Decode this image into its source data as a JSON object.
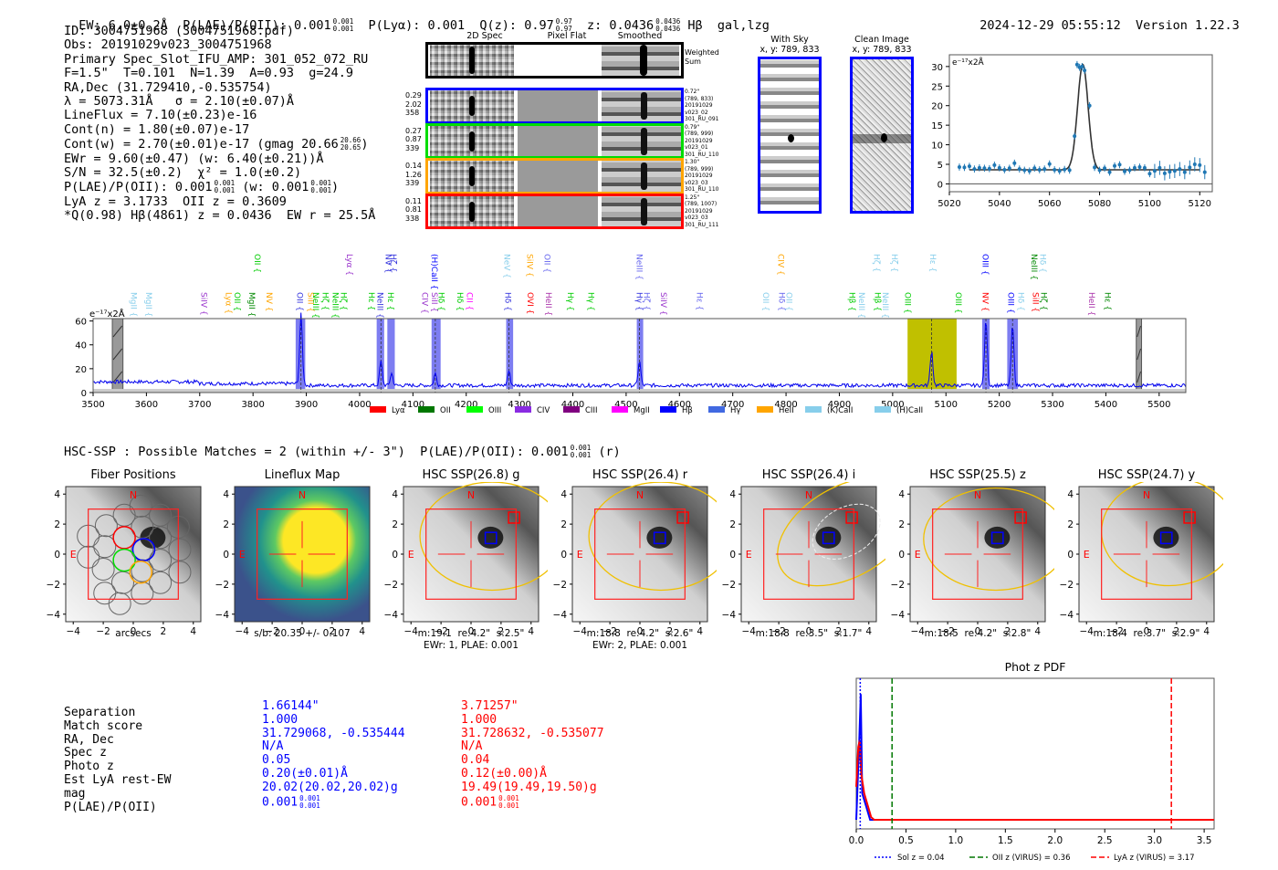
{
  "header": {
    "ew": "EW: 6.0±0.2Å",
    "plae_label": "P(LAE)/P(OII): 0.001",
    "plae_hi": "0.001",
    "plae_lo": "0.001",
    "plya": "P(Lyα): 0.001",
    "qz_label": "Q(z): 0.97",
    "qz_hi": "0.97",
    "qz_lo": "0.97",
    "z_label": "z: 0.0436",
    "z_hi": "0.0436",
    "z_lo": "0.0436",
    "line_tag": "Hβ  gal,lzg",
    "timestamp": "2024-12-29 05:55:12",
    "version": "Version 1.22.3"
  },
  "info": {
    "lines": [
      "ID: 3004751968 (3004751968.pdf)",
      "Obs: 20191029v023_3004751968",
      "Primary Spec_Slot_IFU_AMP: 301_052_072_RU",
      "F=1.5\"  T=0.101  N=1.39  A=0.93  g=24.9",
      "RA,Dec (31.729410,-0.535754)",
      "λ = 5073.31Å   σ = 2.10(±0.07)Å",
      "LineFlux = 7.10(±0.23)e-16",
      "Cont(n) = 1.80(±0.07)e-17"
    ],
    "contw": "Cont(w) = 2.70(±0.01)e-17 (gmag 20.66",
    "contw_hi": "20.66",
    "contw_lo": "20.65",
    "contw_end": ")",
    "ewr": "EWr = 9.60(±0.47) (w: 6.40(±0.21))Å",
    "sn": "S/N = 32.5(±0.2)  χ² = 1.0(±0.2)",
    "plae_a": "P(LAE)/P(OII): 0.001",
    "plae_a_hi": "0.001",
    "plae_a_lo": "0.001",
    "plae_b": " (w: 0.001",
    "plae_b_hi": "0.001",
    "plae_b_lo": "0.001",
    "plae_c": ")",
    "lya_oii": "LyA z = 3.1733  OII z = 0.3609",
    "best": "*Q(0.98) Hβ(4861) z = 0.0436  EW r = 25.5Å"
  },
  "spec2d": {
    "columns": [
      "2D Spec",
      "Pixel Flat",
      "Smoothed"
    ],
    "weighted_label": "Weighted Sum",
    "rows": [
      {
        "color": "#0000ff",
        "left": [
          "0.29",
          "2.02",
          "358"
        ],
        "right": [
          "0.72\"",
          "(789, 833)",
          "20191029",
          "v023_02",
          "301_RU_091"
        ]
      },
      {
        "color": "#00dd00",
        "left": [
          "0.27",
          "0.87",
          "339"
        ],
        "right": [
          "0.79\"",
          "(789, 999)",
          "20191029",
          "v023_01",
          "301_RU_110"
        ]
      },
      {
        "color": "#ffa500",
        "left": [
          "0.14",
          "1.26",
          "339"
        ],
        "right": [
          "1.30\"",
          "(789, 999)",
          "20191029",
          "v023_03",
          "301_RU_110"
        ]
      },
      {
        "color": "#ff0000",
        "left": [
          "0.11",
          "0.81",
          "338"
        ],
        "right": [
          "1.25\"",
          "(789, 1007)",
          "20191029",
          "v023_03",
          "301_RU_111"
        ]
      }
    ]
  },
  "cutouts": [
    {
      "title": "With Sky",
      "coords": "x, y: 789, 833"
    },
    {
      "title": "Clean Image",
      "coords": "x, y: 789, 833"
    }
  ],
  "chart_data": [
    {
      "type": "scatter",
      "title": "",
      "ylabel": "e⁻¹⁷x2Å",
      "xlim": [
        5020,
        5125
      ],
      "ylim": [
        -2,
        33
      ],
      "xticks": [
        5020,
        5040,
        5060,
        5080,
        5100,
        5120
      ],
      "yticks": [
        0,
        5,
        10,
        15,
        20,
        25,
        30
      ],
      "x": [
        5024,
        5026,
        5028,
        5030,
        5032,
        5034,
        5036,
        5038,
        5040,
        5042,
        5044,
        5046,
        5048,
        5050,
        5052,
        5054,
        5056,
        5058,
        5060,
        5062,
        5064,
        5066,
        5068,
        5070,
        5071,
        5072,
        5073,
        5074,
        5076,
        5078,
        5080,
        5082,
        5084,
        5086,
        5088,
        5090,
        5092,
        5094,
        5096,
        5098,
        5100,
        5102,
        5104,
        5106,
        5108,
        5110,
        5112,
        5114,
        5116,
        5118,
        5120,
        5122
      ],
      "y": [
        4.3,
        4.2,
        4.5,
        3.8,
        4.1,
        4.0,
        3.9,
        4.8,
        4.1,
        3.6,
        4.0,
        5.3,
        3.8,
        3.5,
        3.3,
        4.0,
        3.6,
        3.8,
        5.1,
        3.6,
        3.3,
        3.7,
        3.5,
        12.2,
        30.5,
        29.8,
        30.0,
        29.0,
        20.0,
        4.2,
        3.5,
        4.0,
        3.0,
        4.6,
        4.9,
        3.2,
        3.5,
        4.1,
        4.3,
        4.1,
        2.6,
        3.3,
        4.1,
        2.7,
        3.1,
        3.3,
        3.8,
        3.0,
        4.2,
        5.0,
        4.8,
        3.0
      ],
      "fit": {
        "continuum": 3.6,
        "peak": 30.5,
        "center": 5073.3,
        "sigma": 2.1,
        "xrange": [
          5028,
          5120
        ]
      }
    },
    {
      "type": "line",
      "ylabel": "e⁻¹⁷x2Å",
      "xlim": [
        3500,
        5550
      ],
      "ylim": [
        0,
        62
      ],
      "xticks": [
        3500,
        3600,
        3700,
        3800,
        3900,
        4000,
        4100,
        4200,
        4300,
        4400,
        4500,
        4600,
        4700,
        4800,
        4900,
        5000,
        5100,
        5200,
        5300,
        5400,
        5500
      ],
      "yticks": [
        0,
        20,
        40,
        60
      ],
      "continuum_level": 6,
      "emission": [
        {
          "x": 3890,
          "peak": 58
        },
        {
          "x": 4040,
          "peak": 20
        },
        {
          "x": 4060,
          "peak": 10
        },
        {
          "x": 4142,
          "peak": 10
        },
        {
          "x": 4280,
          "peak": 12
        },
        {
          "x": 4525,
          "peak": 20
        },
        {
          "x": 5073,
          "peak": 29
        },
        {
          "x": 5175,
          "peak": 55
        },
        {
          "x": 5225,
          "peak": 50
        }
      ],
      "shaded_regions": [
        {
          "x0": 3880,
          "x1": 3898,
          "color": "#6666ee"
        },
        {
          "x0": 4032,
          "x1": 4046,
          "color": "#6666ee"
        },
        {
          "x0": 4052,
          "x1": 4066,
          "color": "#6666ee"
        },
        {
          "x0": 4135,
          "x1": 4152,
          "color": "#6666ee"
        },
        {
          "x0": 4275,
          "x1": 4288,
          "color": "#6666ee"
        },
        {
          "x0": 4520,
          "x1": 4532,
          "color": "#6666ee"
        },
        {
          "x0": 5028,
          "x1": 5120,
          "color": "#c0c000"
        },
        {
          "x0": 5168,
          "x1": 5182,
          "color": "#6666ee"
        },
        {
          "x0": 5215,
          "x1": 5235,
          "color": "#6666ee"
        }
      ],
      "masked_regions": [
        {
          "x0": 3536,
          "x1": 3556
        },
        {
          "x0": 5457,
          "x1": 5467
        }
      ],
      "dashed_lines": [
        3890,
        4040,
        4142,
        4280,
        4525,
        5073,
        5175,
        5225
      ],
      "line_labels_upper": [
        {
          "x": 3810,
          "label": "OII",
          "color": "#00cc00"
        },
        {
          "x": 3983,
          "label": "Lyα",
          "color": "#9933cc"
        },
        {
          "x": 4056,
          "label": "NV",
          "color": "#3333dd"
        },
        {
          "x": 4065,
          "label": "Hζ",
          "color": "#3333dd"
        },
        {
          "x": 4142,
          "label": "(H)CaII",
          "color": "#0000ff"
        },
        {
          "x": 4278,
          "label": "NeV",
          "color": "#87ceeb"
        },
        {
          "x": 4321,
          "label": "SiIV",
          "color": "#ffa500"
        },
        {
          "x": 4354,
          "label": "OII",
          "color": "#6666ee"
        },
        {
          "x": 4527,
          "label": "NeIII",
          "color": "#6666ee"
        },
        {
          "x": 4792,
          "label": "CIV",
          "color": "#ffa500"
        },
        {
          "x": 4972,
          "label": "Hζ",
          "color": "#87ceeb"
        },
        {
          "x": 5005,
          "label": "Hζ",
          "color": "#87ceeb"
        },
        {
          "x": 5077,
          "label": "Hε",
          "color": "#87ceeb"
        },
        {
          "x": 5176,
          "label": "OIII",
          "color": "#0000ff"
        },
        {
          "x": 5267,
          "label": "NeIII",
          "color": "#008800"
        },
        {
          "x": 5284,
          "label": "Hδ",
          "color": "#87ceeb"
        }
      ],
      "line_labels_lower": [
        {
          "x": 3578,
          "label": "MgII",
          "color": "#87ceeb"
        },
        {
          "x": 3606,
          "label": "MgII",
          "color": "#87ceeb"
        },
        {
          "x": 3710,
          "label": "SiIV",
          "color": "#9933cc"
        },
        {
          "x": 3756,
          "label": "Lyα",
          "color": "#ffa500"
        },
        {
          "x": 3772,
          "label": "OII",
          "color": "#00cc00"
        },
        {
          "x": 3800,
          "label": "MgII",
          "color": "#008800"
        },
        {
          "x": 3832,
          "label": "NV",
          "color": "#ffa500"
        },
        {
          "x": 3890,
          "label": "OII",
          "color": "#3333dd"
        },
        {
          "x": 3910,
          "label": "SiII",
          "color": "#ffa500"
        },
        {
          "x": 3920,
          "label": "NeIII",
          "color": "#00cc00"
        },
        {
          "x": 3938,
          "label": "Hζ",
          "color": "#00cc00"
        },
        {
          "x": 3956,
          "label": "NeIII",
          "color": "#00cc00"
        },
        {
          "x": 3972,
          "label": "Hζ",
          "color": "#00cc00"
        },
        {
          "x": 4024,
          "label": "Hε",
          "color": "#00cc00"
        },
        {
          "x": 4040,
          "label": "NeIII",
          "color": "#3333dd"
        },
        {
          "x": 4060,
          "label": "Hε",
          "color": "#00cc00"
        },
        {
          "x": 4124,
          "label": "CIV",
          "color": "#9933cc"
        },
        {
          "x": 4142,
          "label": "SiII",
          "color": "#9933cc"
        },
        {
          "x": 4155,
          "label": "Hδ",
          "color": "#00cc00"
        },
        {
          "x": 4190,
          "label": "Hδ",
          "color": "#00cc00"
        },
        {
          "x": 4208,
          "label": "CII",
          "color": "#ff00ff"
        },
        {
          "x": 4280,
          "label": "Hδ",
          "color": "#3333dd"
        },
        {
          "x": 4322,
          "label": "OVI",
          "color": "#ff0000"
        },
        {
          "x": 4356,
          "label": "HeII",
          "color": "#aa33aa"
        },
        {
          "x": 4397,
          "label": "Hγ",
          "color": "#00cc00"
        },
        {
          "x": 4436,
          "label": "Hγ",
          "color": "#00cc00"
        },
        {
          "x": 4527,
          "label": "Hγ",
          "color": "#3333dd"
        },
        {
          "x": 4540,
          "label": "Hζ",
          "color": "#6666ee"
        },
        {
          "x": 4572,
          "label": "SiIV",
          "color": "#9933cc"
        },
        {
          "x": 4640,
          "label": "Hε",
          "color": "#6666ee"
        },
        {
          "x": 4764,
          "label": "OII",
          "color": "#87ceeb"
        },
        {
          "x": 4794,
          "label": "Hδ",
          "color": "#6666ee"
        },
        {
          "x": 4808,
          "label": "OII",
          "color": "#87ceeb"
        },
        {
          "x": 4926,
          "label": "Hβ",
          "color": "#00cc00"
        },
        {
          "x": 4944,
          "label": "NeIII",
          "color": "#87ceeb"
        },
        {
          "x": 4974,
          "label": "Hβ",
          "color": "#00cc00"
        },
        {
          "x": 4988,
          "label": "NeIII",
          "color": "#87ceeb"
        },
        {
          "x": 5030,
          "label": "OIII",
          "color": "#00cc00"
        },
        {
          "x": 5125,
          "label": "OIII",
          "color": "#00cc00"
        },
        {
          "x": 5176,
          "label": "NV",
          "color": "#ff0000"
        },
        {
          "x": 5224,
          "label": "OIII",
          "color": "#0000ff"
        },
        {
          "x": 5243,
          "label": "Hδ",
          "color": "#87ceeb"
        },
        {
          "x": 5270,
          "label": "SiII",
          "color": "#ff0000"
        },
        {
          "x": 5285,
          "label": "Hζ",
          "color": "#008800"
        },
        {
          "x": 5375,
          "label": "HeII",
          "color": "#aa33aa"
        },
        {
          "x": 5405,
          "label": "Hε",
          "color": "#008800"
        }
      ],
      "legend": [
        {
          "label": "Lyα",
          "color": "#ff0000"
        },
        {
          "label": "OII",
          "color": "#007700"
        },
        {
          "label": "OIII",
          "color": "#00ff00"
        },
        {
          "label": "CIV",
          "color": "#8a2be2"
        },
        {
          "label": "CIII",
          "color": "#800080"
        },
        {
          "label": "MgII",
          "color": "#ff00ff"
        },
        {
          "label": "Hβ",
          "color": "#0000ff"
        },
        {
          "label": "Hγ",
          "color": "#4169e1"
        },
        {
          "label": "HeII",
          "color": "#ffa500"
        },
        {
          "label": "(K)CaII",
          "color": "#87ceeb"
        },
        {
          "label": "(H)CaII",
          "color": "#87ceeb"
        }
      ],
      "legend_position": "bottom"
    },
    {
      "type": "line",
      "title": "Phot z PDF",
      "xlim": [
        0.0,
        3.6
      ],
      "xticks": [
        0.0,
        0.5,
        1.0,
        1.5,
        2.0,
        2.5,
        3.0,
        3.5
      ],
      "series": [
        {
          "name": "blue-pdf",
          "color": "#0000ff",
          "x": [
            0.0,
            0.03,
            0.045,
            0.06,
            0.1,
            0.14,
            0.16,
            3.6
          ],
          "y": [
            0.0,
            0.6,
            0.95,
            0.2,
            0.1,
            0.0,
            0.0,
            0.0
          ]
        },
        {
          "name": "red-pdf",
          "color": "#ff0000",
          "x": [
            0.0,
            0.02,
            0.035,
            0.05,
            0.08,
            0.15,
            0.18,
            3.6
          ],
          "y": [
            0.25,
            0.55,
            0.6,
            0.35,
            0.2,
            0.02,
            0.0,
            0.0
          ]
        }
      ],
      "vlines": [
        {
          "label": "Sol z = 0.04",
          "x": 0.04,
          "color": "#0000ff",
          "style": "dotted"
        },
        {
          "label": "OII z (VIRUS) = 0.36",
          "x": 0.36,
          "color": "#007700",
          "style": "dashed"
        },
        {
          "label": "LyA z (VIRUS) = 3.17",
          "x": 3.17,
          "color": "#ff0000",
          "style": "dashed"
        }
      ],
      "legend_position": "bottom"
    }
  ],
  "hsc": {
    "summary": "HSC-SSP : Possible Matches = 2 (within +/- 3\")  P(LAE)/P(OII): 0.001",
    "summary_hi": "0.001",
    "summary_lo": "0.001",
    "summary_end": " (r)",
    "axis_ticks": [
      "4",
      "2",
      "0",
      "−2",
      "−4"
    ],
    "x_ticks": [
      "−4",
      "−2",
      "0",
      "2",
      "4"
    ],
    "north": "N",
    "east": "E",
    "panels": [
      {
        "title": "Fiber Positions",
        "cap1": "arcsecs",
        "cap2": ""
      },
      {
        "title": "Lineflux Map",
        "cap1": "s/b: 20.35 +/- 0.107",
        "cap2": ""
      },
      {
        "title": "HSC SSP(26.8) g",
        "cap1": "m:19.1  re:4.2\"  s:2.5\"",
        "cap2": "EWr: 1, PLAE: 0.001"
      },
      {
        "title": "HSC SSP(26.4) r",
        "cap1": "m:18.8  re:4.2\"  s:2.6\"",
        "cap2": "EWr: 2, PLAE: 0.001"
      },
      {
        "title": "HSC SSP(26.4) i",
        "cap1": "m:18.8  re:3.5\"  s:1.7\"",
        "cap2": ""
      },
      {
        "title": "HSC SSP(25.5) z",
        "cap1": "m:18.5  re:4.2\"  s:2.8\"",
        "cap2": ""
      },
      {
        "title": "HSC SSP(24.7) y",
        "cap1": "m:18.4  re:3.7\"  s:2.9\"",
        "cap2": ""
      }
    ]
  },
  "matches": {
    "labels": [
      "Separation",
      "Match score",
      "RA, Dec",
      "Spec z",
      "Photo z",
      "Est LyA rest-EW",
      "mag",
      "P(LAE)/P(OII)"
    ],
    "blue": [
      "1.66144\"",
      "1.000",
      "31.729068, -0.535444",
      "N/A",
      "0.05",
      "0.20(±0.01)Å",
      "20.02(20.02,20.02)g",
      "0.001"
    ],
    "blue_hi": "0.001",
    "blue_lo": "0.001",
    "red": [
      "3.71257\"",
      "1.000",
      "31.728632, -0.535077",
      "N/A",
      "0.04",
      "0.12(±0.00)Å",
      "19.49(19.49,19.50)g",
      "0.001"
    ],
    "red_hi": "0.001",
    "red_lo": "0.001",
    "blue_color": "#0000ff",
    "red_color": "#ff0000"
  }
}
